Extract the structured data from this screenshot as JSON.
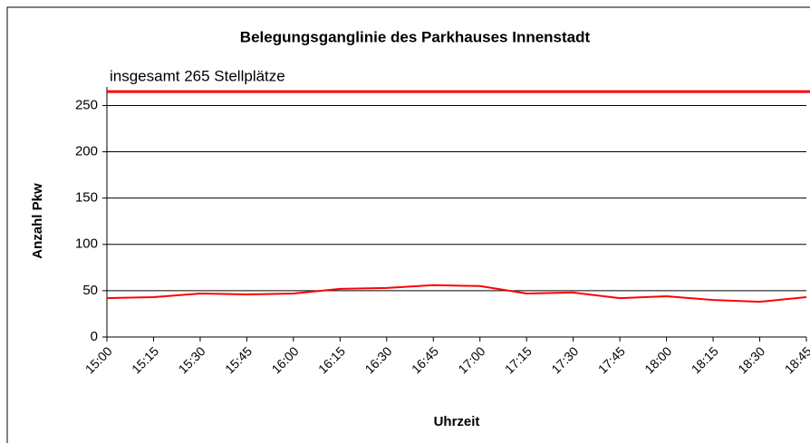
{
  "chart_data": {
    "type": "line",
    "title": "Belegungsganglinie des Parkhauses Innenstadt",
    "x_label": "Uhrzeit",
    "y_label": "Anzahl Pkw",
    "categories": [
      "15:00",
      "15:15",
      "15:30",
      "15:45",
      "16:00",
      "16:15",
      "16:30",
      "16:45",
      "17:00",
      "17:15",
      "17:30",
      "17:45",
      "18:00",
      "18:15",
      "18:30",
      "18:45"
    ],
    "values": [
      42,
      43,
      47,
      46,
      47,
      52,
      53,
      56,
      55,
      47,
      48,
      42,
      44,
      40,
      38,
      43
    ],
    "color": "#ff0000",
    "reference_line": {
      "value": 265,
      "label": "insgesamt 265 Stellplätze",
      "color": "#ff0000"
    },
    "ylim": [
      0,
      270
    ],
    "yticks": [
      0,
      50,
      100,
      150,
      200,
      250
    ],
    "grid": true
  }
}
